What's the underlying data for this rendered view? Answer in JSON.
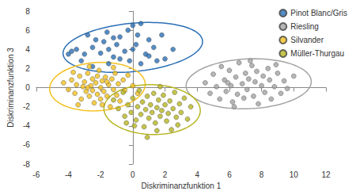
{
  "chart_data": {
    "type": "scatter",
    "x_label": "Diskriminanzfunktion 1",
    "y_label": "Diskriminanzfunktion 3",
    "xlim": [
      -6,
      12
    ],
    "xticks": [
      -6,
      -4,
      -2,
      0,
      2,
      4,
      6,
      8,
      10,
      12
    ],
    "ylim": [
      -8,
      8
    ],
    "yticks": [
      -8,
      -6,
      -4,
      -2,
      0,
      2,
      4,
      6,
      8
    ],
    "grid": false,
    "legend": "top-right",
    "marker": "circle",
    "series": [
      {
        "name": "Pinot Blanc/Gris",
        "color": "#2a6fb5",
        "x": [
          -4,
          -3.8,
          -3.5,
          -3,
          -2.8,
          -2.5,
          -2.3,
          -2,
          -1.8,
          -1.6,
          -1.5,
          -1.2,
          -1,
          -0.8,
          -0.5,
          -0.3,
          0,
          0.5,
          0.2,
          0.8,
          1,
          1.3,
          1.5,
          2,
          1.8,
          0.5,
          -0.2,
          -1.5,
          -2.5,
          -3.2,
          0,
          -0.8,
          1,
          2.5,
          -1.2,
          0.3
        ],
        "y": [
          3.5,
          3.8,
          4,
          3.5,
          5.5,
          4.2,
          5,
          3.6,
          4.8,
          5.8,
          4,
          3.2,
          4.5,
          5.3,
          3.8,
          6,
          6.5,
          6.7,
          4.5,
          3.5,
          5,
          4.2,
          2.8,
          3,
          5.5,
          2.5,
          2.8,
          2.5,
          2.2,
          2.8,
          4,
          3,
          3.3,
          4,
          5.2,
          5.5
        ],
        "ellipse": {
          "center": [
            0,
            4.2
          ],
          "radii": [
            4.4,
            2.5
          ],
          "angle": 12
        }
      },
      {
        "name": "Riesling",
        "color": "#a3a3a3",
        "x": [
          4.5,
          4.8,
          5,
          5.2,
          5.4,
          5.5,
          5.7,
          5.8,
          6,
          6.1,
          6.2,
          6.4,
          6.5,
          6.6,
          6.8,
          6.9,
          7,
          7.1,
          7.2,
          7.4,
          7.5,
          7.6,
          7.7,
          7.8,
          8,
          8.1,
          8.2,
          8.4,
          8.5,
          8.6,
          8.8,
          9,
          9.2,
          9.4,
          9.6,
          10,
          6.3,
          7.3,
          5.9,
          8.9
        ],
        "y": [
          0.5,
          -0.6,
          1.4,
          0.1,
          -1.2,
          2.2,
          0.8,
          -0.4,
          1.8,
          0.2,
          -1.5,
          1.1,
          -0.7,
          2.6,
          0.4,
          -1.1,
          1.5,
          -0.2,
          0.9,
          2.3,
          -0.9,
          0.6,
          1.7,
          -1.7,
          0.2,
          1.2,
          -0.5,
          2,
          0.8,
          -1.2,
          0.1,
          1.5,
          -0.6,
          0.7,
          -0.1,
          1.2,
          -2,
          2.8,
          0.5,
          2.4
        ],
        "ellipse": {
          "center": [
            7.2,
            0.4
          ],
          "radii": [
            3.9,
            2.6
          ],
          "angle": 6
        }
      },
      {
        "name": "Silvander",
        "color": "#f3c11f",
        "x": [
          -4,
          -3.8,
          -3.6,
          -3.5,
          -3.3,
          -3.2,
          -3.1,
          -3,
          -2.9,
          -2.8,
          -2.7,
          -2.6,
          -2.5,
          -2.5,
          -2.4,
          -2.3,
          -2.2,
          -2.1,
          -2,
          -2,
          -1.9,
          -1.8,
          -1.7,
          -1.6,
          -1.5,
          -1.4,
          -1.3,
          -1.2,
          -1.1,
          -1,
          -0.9,
          -0.8,
          -0.6,
          -0.5,
          -0.3,
          0,
          -2.7,
          -3.4,
          -2.2,
          -1.6,
          -2.8,
          -1.9,
          -3.7,
          -1.2,
          0.3,
          -4.3
        ],
        "y": [
          -0.2,
          0.8,
          -0.6,
          0.3,
          1.2,
          -1.2,
          0.1,
          0.6,
          -0.4,
          1.5,
          -0.9,
          0.2,
          0.9,
          -0.3,
          -1.6,
          0.5,
          -0.7,
          1.8,
          0,
          -1.2,
          0.7,
          -0.4,
          1.1,
          -0.9,
          0.3,
          -2,
          0.9,
          -0.2,
          1.5,
          -0.8,
          0.4,
          -1.4,
          0.8,
          -0.3,
          1.3,
          0.2,
          2.2,
          -1.8,
          1.2,
          0.6,
          0,
          -1.8,
          1.6,
          2.1,
          -0.6,
          0.5
        ],
        "ellipse": {
          "center": [
            -2.2,
            0.1
          ],
          "radii": [
            3.0,
            2.5
          ],
          "angle": 15
        }
      },
      {
        "name": "Müller-Thurgau",
        "color": "#b7b521",
        "x": [
          -1.2,
          -0.9,
          -0.6,
          -0.5,
          -0.3,
          -0.1,
          0,
          0.2,
          0.3,
          0.4,
          0.5,
          0.6,
          0.7,
          0.8,
          0.9,
          1,
          1.1,
          1.2,
          1.3,
          1.4,
          1.5,
          1.6,
          1.7,
          1.8,
          1.9,
          2,
          2.1,
          2.2,
          2.3,
          2.4,
          2.5,
          2.6,
          2.7,
          2.9,
          3,
          3.2,
          3.4,
          3.6,
          0.9,
          1.5,
          0.1,
          2.8,
          -0.4,
          1.7
        ],
        "y": [
          -1.3,
          -2.2,
          -0.5,
          -3,
          -1.8,
          -2.6,
          -1.1,
          -3.4,
          -2,
          -0.3,
          -2.8,
          -1.5,
          -4.1,
          -2.3,
          -0.9,
          -3.2,
          -1.8,
          -2.6,
          -0.6,
          -3.7,
          -2.1,
          -1.3,
          -3,
          -2.4,
          -0.8,
          -1.8,
          -3.5,
          -2.7,
          -1.4,
          -4.4,
          -2.2,
          -0.5,
          -3.1,
          -1.7,
          -2.6,
          -1.1,
          -3.3,
          -2,
          -5.2,
          -4.5,
          -4,
          -3.9,
          -3.7,
          0.1
        ],
        "ellipse": {
          "center": [
            1.2,
            -2.3
          ],
          "radii": [
            3.0,
            2.6
          ],
          "angle": -8
        }
      }
    ]
  }
}
